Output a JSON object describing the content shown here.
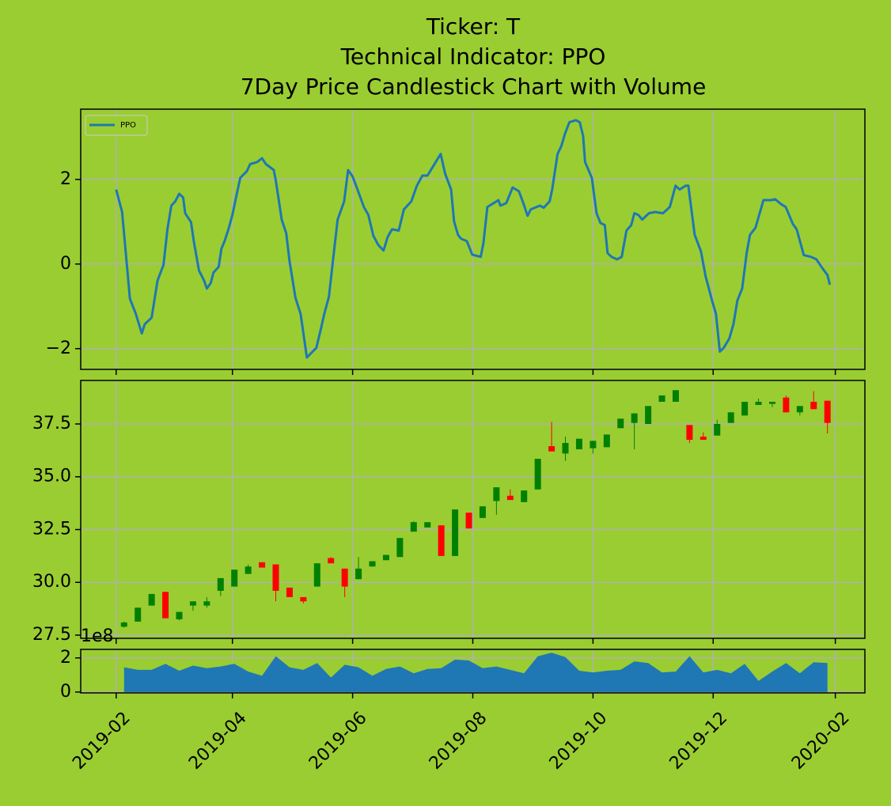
{
  "chart_data": [
    {
      "type": "line",
      "title": [
        "Ticker: T",
        "Technical Indicator: PPO",
        "7Day Price Candlestick Chart with Volume"
      ],
      "legend": "upper left",
      "grid": true,
      "ylim": [
        -2.49,
        3.66
      ],
      "yticks": [
        {
          "value": -2,
          "label": "−2"
        },
        0,
        2
      ],
      "series": [
        {
          "name": "PPO",
          "color": "#1f77b4",
          "x": [
            0,
            3,
            7,
            10,
            13,
            14.5,
            18,
            21,
            24,
            26,
            28,
            30,
            32,
            34,
            35,
            38,
            39.4,
            42,
            44.6,
            46,
            48,
            49.4,
            52,
            53.4,
            55,
            57,
            59,
            61.4,
            63,
            66.3,
            68,
            71.5,
            74,
            76,
            80,
            81,
            84,
            86.3,
            88,
            91,
            93.6,
            96.8,
            101.6,
            104,
            105.6,
            108,
            110,
            112.4,
            115.7,
            117.7,
            120,
            122.5,
            125.7,
            128,
            130.5,
            133,
            135.7,
            137.8,
            140,
            143.4,
            146,
            149.8,
            152.6,
            155.4,
            158,
            161,
            164.7,
            167,
            170,
            171.5,
            173.5,
            175,
            178,
            180.7,
            185,
            186.4,
            188.4,
            191.6,
            194,
            195,
            198,
            201.2,
            204.4,
            206.8,
            208.8,
            210.4,
            215,
            217,
            220,
            221.3,
            224,
            226,
            227.7,
            230,
            233.3,
            235.3,
            237,
            238,
            241.4,
            243.8,
            245.8,
            248,
            249.4,
            251.4,
            254.2,
            256.6,
            259,
            261.4,
            263,
            265,
            267,
            270.4,
            273.5,
            277.5,
            281,
            283.9,
            286,
            289,
            290.4,
            293.6,
            296.8,
            299.2,
            302.4,
            304.4,
            306.4,
            308.4,
            311.2,
            313.3,
            315.3,
            317.7,
            320,
            321.7,
            324.5,
            328.5,
            332.5,
            334.5,
            337.3,
            339.8,
            343.4,
            345.4,
            349,
            352.6,
            355.4,
            358.6,
            361,
            362.2
          ],
          "values": [
            1.76,
            1.23,
            -0.82,
            -1.18,
            -1.64,
            -1.42,
            -1.27,
            -0.39,
            -0.02,
            0.82,
            1.38,
            1.48,
            1.66,
            1.57,
            1.2,
            0.99,
            0.54,
            -0.15,
            -0.39,
            -0.58,
            -0.45,
            -0.2,
            -0.07,
            0.36,
            0.54,
            0.82,
            1.16,
            1.7,
            2.04,
            2.19,
            2.36,
            2.41,
            2.5,
            2.36,
            2.22,
            1.98,
            1.05,
            0.73,
            0.07,
            -0.8,
            -1.18,
            -2.21,
            -1.98,
            -1.51,
            -1.18,
            -0.77,
            0.07,
            1.05,
            1.48,
            2.22,
            2.07,
            1.76,
            1.35,
            1.16,
            0.67,
            0.45,
            0.32,
            0.64,
            0.82,
            0.79,
            1.29,
            1.48,
            1.85,
            2.09,
            2.09,
            2.32,
            2.6,
            2.13,
            1.76,
            1.01,
            0.69,
            0.6,
            0.54,
            0.22,
            0.17,
            0.49,
            1.35,
            1.44,
            1.51,
            1.38,
            1.44,
            1.81,
            1.72,
            1.42,
            1.14,
            1.29,
            1.38,
            1.33,
            1.48,
            1.76,
            2.6,
            2.79,
            3.07,
            3.35,
            3.4,
            3.35,
            3.03,
            2.41,
            2.04,
            1.2,
            0.97,
            0.92,
            0.26,
            0.17,
            0.11,
            0.17,
            0.79,
            0.92,
            1.2,
            1.16,
            1.05,
            1.2,
            1.23,
            1.2,
            1.35,
            1.85,
            1.76,
            1.85,
            1.85,
            0.69,
            0.3,
            -0.3,
            -0.86,
            -1.18,
            -2.07,
            -1.98,
            -1.76,
            -1.42,
            -0.86,
            -0.58,
            0.26,
            0.69,
            0.86,
            1.51,
            1.51,
            1.53,
            1.42,
            1.35,
            0.95,
            0.82,
            0.21,
            0.17,
            0.11,
            -0.11,
            -0.26,
            -0.49
          ]
        }
      ]
    },
    {
      "type": "candlestick",
      "grid": true,
      "up_color": "green",
      "down_color": "red",
      "ylim": [
        27.35,
        39.56
      ],
      "yticks": [
        27.5,
        {
          "value": 30,
          "label": "30.0"
        },
        32.5,
        {
          "value": 35,
          "label": "35.0"
        },
        37.5
      ],
      "x": [
        4,
        11,
        18,
        25,
        32,
        39,
        46,
        53,
        60,
        67,
        74,
        81,
        88,
        95,
        102,
        109,
        116,
        123,
        130,
        137,
        144,
        151,
        158,
        165,
        172,
        179,
        186,
        193,
        200,
        207,
        214,
        221,
        228,
        235,
        242,
        249,
        256,
        263,
        270,
        277,
        284,
        291,
        298,
        305,
        312,
        319,
        326,
        333,
        340,
        347,
        354,
        361
      ],
      "open": [
        27.9,
        28.14,
        28.9,
        29.55,
        28.25,
        28.9,
        28.9,
        29.6,
        29.8,
        30.4,
        30.95,
        30.85,
        29.75,
        29.3,
        29.8,
        31.15,
        30.65,
        30.15,
        30.75,
        31.05,
        31.2,
        32.4,
        32.6,
        32.7,
        31.25,
        33.3,
        33.05,
        33.85,
        34.1,
        33.8,
        34.4,
        36.45,
        36.1,
        36.3,
        36.35,
        36.4,
        37.3,
        37.55,
        37.5,
        38.55,
        38.55,
        37.45,
        36.9,
        36.95,
        37.55,
        37.9,
        38.4,
        38.45,
        38.75,
        38.05,
        38.55,
        38.6
      ],
      "high": [
        28.15,
        28.8,
        29.45,
        29.55,
        28.6,
        29.1,
        29.3,
        30.2,
        30.6,
        30.85,
        30.95,
        30.85,
        29.75,
        29.3,
        30.9,
        31.2,
        30.65,
        31.2,
        31.0,
        31.3,
        32.1,
        32.9,
        32.85,
        32.7,
        33.45,
        33.3,
        33.6,
        34.5,
        34.4,
        34.35,
        35.85,
        37.6,
        36.9,
        36.8,
        36.7,
        37.0,
        37.75,
        38.0,
        38.35,
        38.85,
        39.1,
        37.45,
        37.1,
        37.7,
        38.05,
        38.55,
        38.7,
        38.55,
        38.85,
        38.35,
        39.05,
        38.6
      ],
      "low": [
        27.85,
        28.14,
        28.9,
        28.3,
        28.2,
        28.65,
        28.8,
        29.35,
        29.8,
        30.4,
        30.7,
        29.1,
        29.3,
        29.0,
        29.8,
        30.9,
        29.3,
        30.15,
        30.75,
        31.05,
        31.2,
        32.4,
        32.6,
        31.25,
        31.25,
        32.55,
        33.05,
        33.2,
        33.9,
        33.8,
        34.4,
        36.2,
        35.75,
        36.3,
        36.1,
        36.4,
        37.3,
        36.3,
        37.5,
        38.55,
        38.55,
        36.6,
        36.75,
        36.95,
        37.55,
        37.9,
        38.4,
        38.3,
        38.05,
        37.9,
        38.2,
        37.05
      ],
      "close": [
        28.1,
        28.8,
        29.45,
        28.3,
        28.6,
        29.1,
        29.1,
        30.2,
        30.6,
        30.75,
        30.7,
        29.6,
        29.3,
        29.1,
        30.9,
        30.9,
        29.8,
        30.65,
        31.0,
        31.3,
        32.1,
        32.85,
        32.85,
        31.25,
        33.45,
        32.55,
        33.6,
        34.5,
        33.9,
        34.35,
        35.85,
        36.2,
        36.6,
        36.8,
        36.7,
        37.0,
        37.75,
        38.0,
        38.35,
        38.85,
        39.1,
        36.75,
        36.75,
        37.5,
        38.05,
        38.55,
        38.55,
        38.55,
        38.05,
        38.35,
        38.2,
        37.55
      ]
    },
    {
      "type": "area",
      "grid": true,
      "color": "#1f77b4",
      "offset_label": "1e8",
      "ylim": [
        -0.05,
        2.5
      ],
      "yticks": [
        0,
        2
      ],
      "xlim": [
        -18,
        380
      ],
      "xticks": [
        {
          "value": 0,
          "label": "2019-02"
        },
        {
          "value": 59,
          "label": "2019-04"
        },
        {
          "value": 120,
          "label": "2019-06"
        },
        {
          "value": 181,
          "label": "2019-08"
        },
        {
          "value": 242,
          "label": "2019-10"
        },
        {
          "value": 303,
          "label": "2019-12"
        },
        {
          "value": 365,
          "label": "2020-02"
        }
      ],
      "x": [
        4,
        11,
        18,
        25,
        32,
        39,
        46,
        53,
        60,
        67,
        74,
        81,
        88,
        95,
        102,
        109,
        116,
        123,
        130,
        137,
        144,
        151,
        158,
        165,
        172,
        179,
        186,
        193,
        200,
        207,
        214,
        221,
        228,
        235,
        242,
        249,
        256,
        263,
        270,
        277,
        284,
        291,
        298,
        305,
        312,
        319,
        326,
        333,
        340,
        347,
        354,
        361
      ],
      "values": [
        1.45,
        1.3,
        1.3,
        1.65,
        1.25,
        1.55,
        1.4,
        1.5,
        1.65,
        1.2,
        0.95,
        2.1,
        1.45,
        1.3,
        1.7,
        0.85,
        1.6,
        1.45,
        0.95,
        1.35,
        1.5,
        1.1,
        1.35,
        1.4,
        1.9,
        1.85,
        1.4,
        1.5,
        1.3,
        1.1,
        2.1,
        2.3,
        2.05,
        1.25,
        1.15,
        1.25,
        1.3,
        1.8,
        1.7,
        1.15,
        1.2,
        2.1,
        1.15,
        1.3,
        1.1,
        1.65,
        0.65,
        1.2,
        1.7,
        1.1,
        1.75,
        1.7
      ]
    }
  ]
}
